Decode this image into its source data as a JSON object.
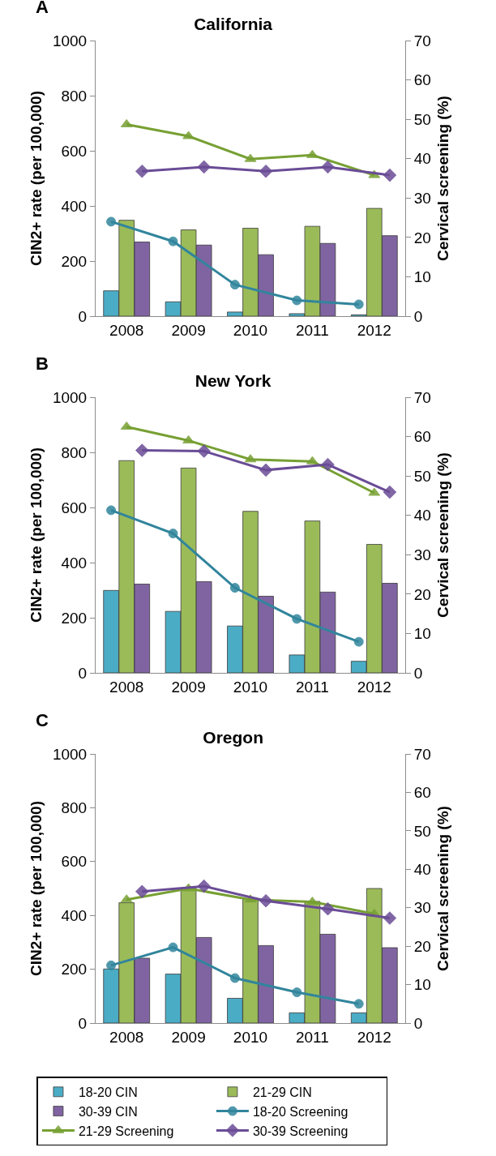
{
  "chart_data": [
    {
      "type": "bar",
      "title": "California",
      "annotations": [
        "A"
      ],
      "ylabel": "CIN2+ rate (per 100,000)",
      "y2label": "Cervical screening (%)",
      "xlim": [
        2007.5,
        2012.5
      ],
      "xticks": [
        2008,
        2009,
        2010,
        2011,
        2012
      ],
      "ylim": [
        0,
        1000
      ],
      "yticks": [
        0,
        200,
        400,
        600,
        800,
        1000
      ],
      "y2lim": [
        0,
        70
      ],
      "y2ticks": [
        0,
        10,
        20,
        30,
        40,
        50,
        60,
        70
      ],
      "grid": false,
      "legend": false,
      "series": [
        {
          "color": "#4bacc6",
          "x": [
            2007.75,
            2008.75,
            2009.75,
            2010.75,
            2011.75
          ],
          "values": [
            92,
            52,
            15,
            9,
            5
          ]
        },
        {
          "color": "#9bbb59",
          "x": [
            2008,
            2009,
            2010,
            2011,
            2012
          ],
          "values": [
            348,
            313,
            319,
            326,
            391
          ]
        },
        {
          "color": "#8064a2",
          "x": [
            2008.25,
            2009.25,
            2010.25,
            2011.25,
            2012.25
          ],
          "values": [
            269,
            258,
            223,
            264,
            292
          ]
        },
        {
          "type": "line",
          "axis": "y2",
          "marker": "circle",
          "color": "#31859c",
          "x": [
            2007.75,
            2008.75,
            2009.75,
            2010.75,
            2011.75
          ],
          "values": [
            24,
            19,
            8,
            4,
            3
          ]
        },
        {
          "type": "line",
          "axis": "y2",
          "marker": "triangle",
          "color": "#77a033",
          "x": [
            2008,
            2009,
            2010,
            2011,
            2012
          ],
          "values": [
            48.7,
            45.7,
            39.9,
            40.9,
            35.8
          ]
        },
        {
          "type": "line",
          "axis": "y2",
          "marker": "diamond",
          "color": "#6a4c96",
          "x": [
            2008.25,
            2009.25,
            2010.25,
            2011.25,
            2012.25
          ],
          "values": [
            36.8,
            37.9,
            36.8,
            37.9,
            35.8
          ]
        }
      ]
    },
    {
      "type": "bar",
      "title": "New York",
      "annotations": [
        "B"
      ],
      "ylabel": "CIN2+ rate (per 100,000)",
      "y2label": "Cervical screening (%)",
      "xlim": [
        2007.5,
        2012.5
      ],
      "xticks": [
        2008,
        2009,
        2010,
        2011,
        2012
      ],
      "ylim": [
        0,
        1000
      ],
      "yticks": [
        0,
        200,
        400,
        600,
        800,
        1000
      ],
      "y2lim": [
        0,
        70
      ],
      "y2ticks": [
        0,
        10,
        20,
        30,
        40,
        50,
        60,
        70
      ],
      "grid": false,
      "legend": false,
      "series": [
        {
          "color": "#4bacc6",
          "x": [
            2007.75,
            2008.75,
            2009.75,
            2010.75,
            2011.75
          ],
          "values": [
            299,
            223,
            170,
            65,
            42
          ]
        },
        {
          "color": "#9bbb59",
          "x": [
            2008,
            2009,
            2010,
            2011,
            2012
          ],
          "values": [
            770,
            743,
            586,
            551,
            466
          ]
        },
        {
          "color": "#8064a2",
          "x": [
            2008.25,
            2009.25,
            2010.25,
            2011.25,
            2012.25
          ],
          "values": [
            322,
            331,
            278,
            293,
            325
          ]
        },
        {
          "type": "line",
          "axis": "y2",
          "marker": "circle",
          "color": "#31859c",
          "x": [
            2007.75,
            2008.75,
            2009.75,
            2010.75,
            2011.75
          ],
          "values": [
            41.3,
            35.4,
            21.6,
            13.7,
            7.9
          ]
        },
        {
          "type": "line",
          "axis": "y2",
          "marker": "triangle",
          "color": "#77a033",
          "x": [
            2008,
            2009,
            2010,
            2011,
            2012
          ],
          "values": [
            62.5,
            59.0,
            54.2,
            53.7,
            45.7
          ]
        },
        {
          "type": "line",
          "axis": "y2",
          "marker": "diamond",
          "color": "#6a4c96",
          "x": [
            2008.25,
            2009.25,
            2010.25,
            2011.25,
            2012.25
          ],
          "values": [
            56.5,
            56.3,
            51.5,
            52.9,
            45.9
          ]
        }
      ]
    },
    {
      "type": "bar",
      "title": "Oregon",
      "annotations": [
        "C"
      ],
      "ylabel": "CIN2+ rate (per 100,000)",
      "y2label": "Cervical screening (%)",
      "xlim": [
        2007.5,
        2012.5
      ],
      "xticks": [
        2008,
        2009,
        2010,
        2011,
        2012
      ],
      "ylim": [
        0,
        1000
      ],
      "yticks": [
        0,
        200,
        400,
        600,
        800,
        1000
      ],
      "y2lim": [
        0,
        70
      ],
      "y2ticks": [
        0,
        10,
        20,
        30,
        40,
        50,
        60,
        70
      ],
      "grid": false,
      "legend": "bottom",
      "series": [
        {
          "name": "18-20 CIN",
          "color": "#4bacc6",
          "x": [
            2007.75,
            2008.75,
            2009.75,
            2010.75,
            2011.75
          ],
          "values": [
            201,
            182,
            92,
            38,
            38
          ]
        },
        {
          "name": "21-29 CIN",
          "color": "#9bbb59",
          "x": [
            2008,
            2009,
            2010,
            2011,
            2012
          ],
          "values": [
            447,
            501,
            460,
            452,
            500
          ]
        },
        {
          "name": "30-39 CIN",
          "color": "#8064a2",
          "x": [
            2008.25,
            2009.25,
            2010.25,
            2011.25,
            2012.25
          ],
          "values": [
            241,
            318,
            288,
            330,
            280
          ]
        },
        {
          "name": "18-20 Screening",
          "type": "line",
          "axis": "y2",
          "marker": "circle",
          "color": "#31859c",
          "x": [
            2007.75,
            2008.75,
            2009.75,
            2010.75,
            2011.75
          ],
          "values": [
            15.0,
            19.7,
            11.7,
            8.0,
            5.0
          ]
        },
        {
          "name": "21-29 Screening",
          "type": "line",
          "axis": "y2",
          "marker": "triangle",
          "color": "#77a033",
          "x": [
            2008,
            2009,
            2010,
            2011,
            2012
          ],
          "values": [
            32.1,
            35.0,
            32.1,
            31.5,
            28.4
          ]
        },
        {
          "name": "30-39 Screening",
          "type": "line",
          "axis": "y2",
          "marker": "diamond",
          "color": "#6a4c96",
          "x": [
            2008.25,
            2009.25,
            2010.25,
            2011.25,
            2012.25
          ],
          "values": [
            34.2,
            35.6,
            31.8,
            29.7,
            27.3
          ]
        }
      ]
    }
  ]
}
